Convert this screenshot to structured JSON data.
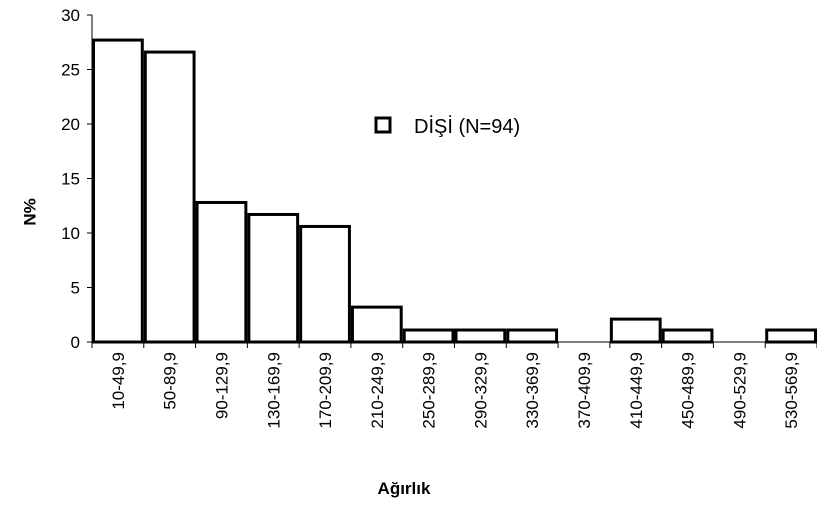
{
  "chart_data": {
    "type": "bar",
    "categories": [
      "10-49,9",
      "50-89,9",
      "90-129,9",
      "130-169,9",
      "170-209,9",
      "210-249,9",
      "250-289,9",
      "290-329,9",
      "330-369,9",
      "370-409,9",
      "410-449,9",
      "450-489,9",
      "490-529,9",
      "530-569,9"
    ],
    "series": [
      {
        "name": "DİŞİ (N=94)",
        "values": [
          27.7,
          26.6,
          12.8,
          11.7,
          10.6,
          3.2,
          1.1,
          1.1,
          1.1,
          0,
          2.1,
          1.1,
          0,
          1.1
        ]
      }
    ],
    "xlabel": "Ağırlık",
    "ylabel": "%N",
    "ylim": [
      0,
      30
    ],
    "yticks": [
      0,
      5,
      10,
      15,
      20,
      25,
      30
    ],
    "grid": false,
    "legend": "center-right",
    "colors": {
      "bar_fill": "#ffffff",
      "bar_stroke": "#000000",
      "axis": "#000000"
    }
  }
}
